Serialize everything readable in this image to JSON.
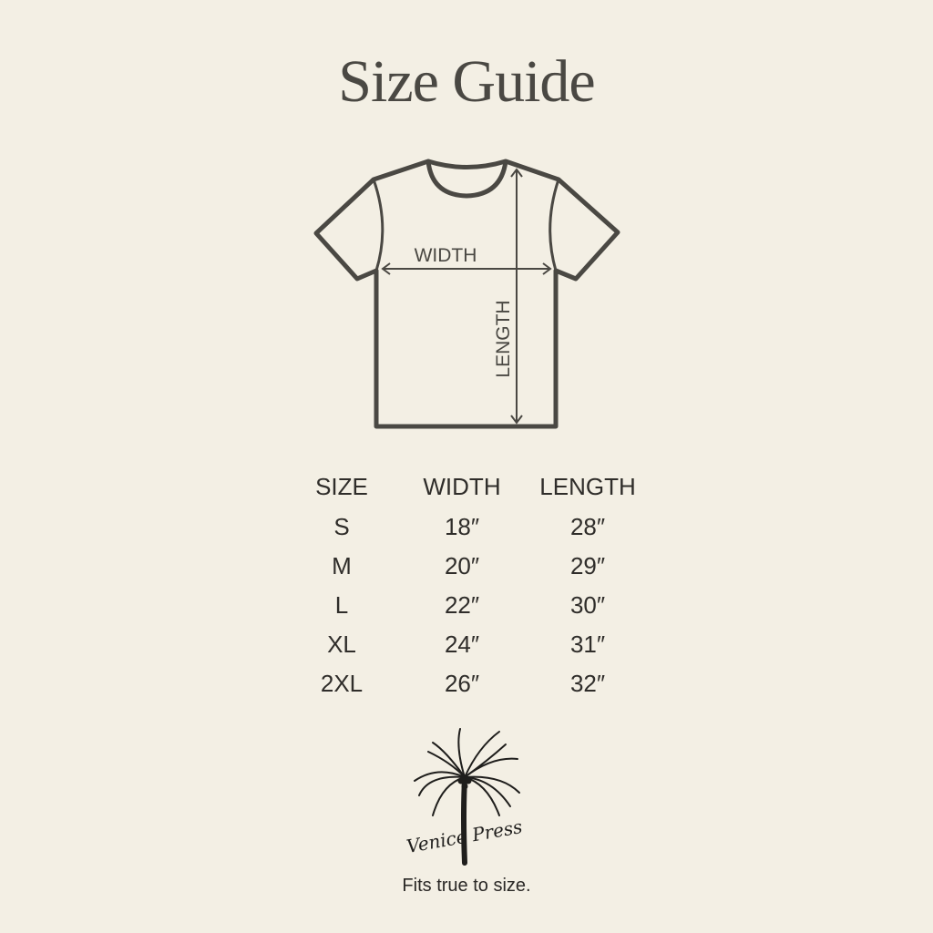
{
  "title": "Size Guide",
  "diagram": {
    "width_label": "WIDTH",
    "length_label": "LENGTH"
  },
  "table": {
    "headers": [
      "SIZE",
      "WIDTH",
      "LENGTH"
    ],
    "rows": [
      [
        "S",
        "18″",
        "28″"
      ],
      [
        "M",
        "20″",
        "29″"
      ],
      [
        "L",
        "22″",
        "30″"
      ],
      [
        "XL",
        "24″",
        "31″"
      ],
      [
        "2XL",
        "26″",
        "32″"
      ]
    ]
  },
  "logo": {
    "text": "Venice Press"
  },
  "footer": "Fits true to size.",
  "colors": {
    "background": "#f3efe4",
    "ink": "#4a4843"
  }
}
